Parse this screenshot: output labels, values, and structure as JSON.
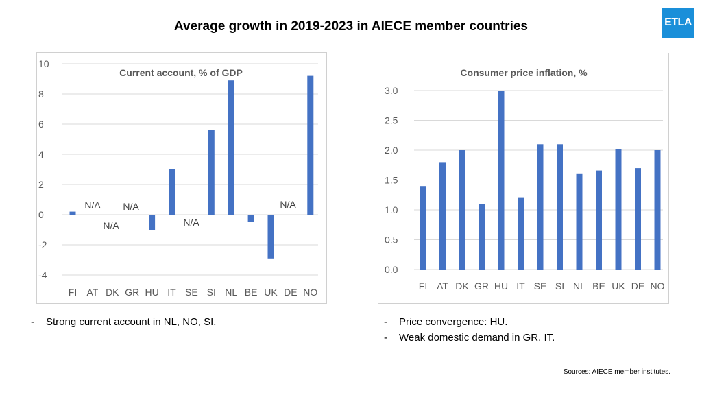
{
  "page": {
    "title": "Average growth in 2019-2023 in AIECE member countries",
    "logo_text": "ETLA",
    "logo_color": "#1a8fd9",
    "bar_color": "#4472c4",
    "bullets_left": [
      {
        "dash": "-",
        "text": "Strong current account in NL, NO, SI."
      }
    ],
    "bullets_right": [
      {
        "dash": "-",
        "text": "Price convergence: HU."
      },
      {
        "dash": "-",
        "text": "Weak domestic demand in GR, IT."
      }
    ],
    "source": "Sources: AIECE member institutes."
  },
  "chart_data": [
    {
      "type": "bar",
      "title": "Current account, % of GDP",
      "categories": [
        "FI",
        "AT",
        "DK",
        "GR",
        "HU",
        "IT",
        "SE",
        "SI",
        "NL",
        "BE",
        "UK",
        "DE",
        "NO"
      ],
      "values": [
        0.2,
        null,
        null,
        null,
        -1.0,
        3.0,
        null,
        5.6,
        8.9,
        -0.5,
        -2.9,
        null,
        9.2
      ],
      "na_labels": [
        "N/A",
        "N/A",
        "N/A",
        "N/A",
        "N/A"
      ],
      "yticks": [
        "10",
        "8",
        "6",
        "4",
        "2",
        "0",
        "-2",
        "-4"
      ],
      "ylim": [
        -4,
        10
      ],
      "grid": true
    },
    {
      "type": "bar",
      "title": "Consumer price inflation, %",
      "categories": [
        "FI",
        "AT",
        "DK",
        "GR",
        "HU",
        "IT",
        "SE",
        "SI",
        "NL",
        "BE",
        "UK",
        "DE",
        "NO"
      ],
      "values": [
        1.4,
        1.8,
        2.0,
        1.1,
        3.0,
        1.2,
        2.1,
        2.1,
        1.6,
        1.66,
        2.02,
        1.7,
        2.0
      ],
      "yticks": [
        "3.0",
        "2.5",
        "2.0",
        "1.5",
        "1.0",
        "0.5",
        "0.0"
      ],
      "ylim": [
        0,
        3.0
      ],
      "grid": true
    }
  ]
}
